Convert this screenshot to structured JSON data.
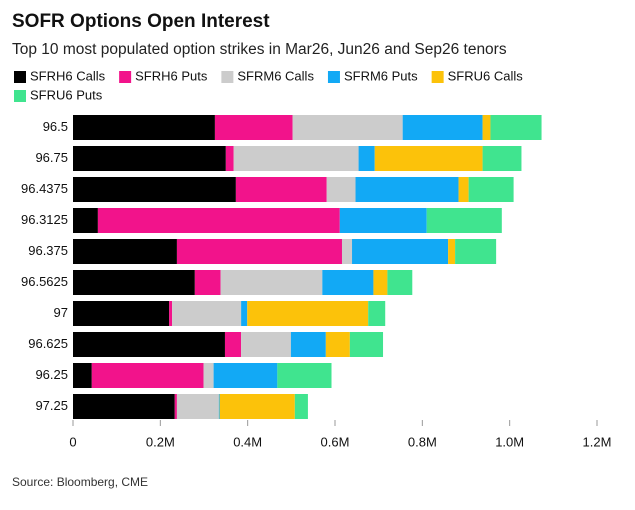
{
  "chart_data": {
    "type": "stacked-barh",
    "title": "SOFR Options Open Interest",
    "subtitle": "Top 10 most populated option strikes in Mar26, Jun26 and Sep26 tenors",
    "source": "Source: Bloomberg, CME",
    "categories": [
      "96.5",
      "96.75",
      "96.4375",
      "96.3125",
      "96.375",
      "96.5625",
      "97",
      "96.625",
      "96.25",
      "97.25"
    ],
    "series": [
      {
        "name": "SFRH6 Calls",
        "color": "#000000",
        "values": [
          325000,
          350000,
          373000,
          57000,
          238000,
          279000,
          220000,
          348000,
          43000,
          233000
        ]
      },
      {
        "name": "SFRH6 Puts",
        "color": "#f2138b",
        "values": [
          178000,
          18000,
          208000,
          554000,
          378000,
          59000,
          7000,
          37000,
          256000,
          5000
        ]
      },
      {
        "name": "SFRM6 Calls",
        "color": "#cccccc",
        "values": [
          252000,
          286000,
          66000,
          0,
          23000,
          233000,
          158000,
          114000,
          23000,
          96000
        ]
      },
      {
        "name": "SFRM6 Puts",
        "color": "#12a9f5",
        "values": [
          183000,
          37000,
          236000,
          199000,
          220000,
          117000,
          14000,
          80000,
          146000,
          2000
        ]
      },
      {
        "name": "SFRU6 Calls",
        "color": "#fcc20a",
        "values": [
          18000,
          247000,
          23000,
          0,
          16000,
          32000,
          277000,
          55000,
          0,
          172000
        ]
      },
      {
        "name": "SFRU6 Puts",
        "color": "#40e48f",
        "values": [
          117000,
          89000,
          103000,
          172000,
          94000,
          57000,
          39000,
          76000,
          124000,
          30000
        ]
      }
    ],
    "xlim": [
      0,
      1200000
    ],
    "xticks": [
      0,
      {
        "value": 200000,
        "label": "0.2M"
      },
      {
        "value": 400000,
        "label": "0.4M"
      },
      {
        "value": 600000,
        "label": "0.6M"
      },
      {
        "value": 800000,
        "label": "0.8M"
      },
      {
        "value": 1000000,
        "label": "1.0M"
      },
      {
        "value": 1200000,
        "label": "1.2M"
      }
    ],
    "grid": false
  }
}
